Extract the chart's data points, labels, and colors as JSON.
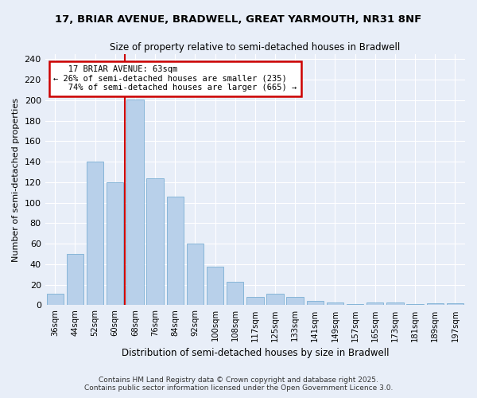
{
  "title_line1": "17, BRIAR AVENUE, BRADWELL, GREAT YARMOUTH, NR31 8NF",
  "title_line2": "Size of property relative to semi-detached houses in Bradwell",
  "xlabel": "Distribution of semi-detached houses by size in Bradwell",
  "ylabel": "Number of semi-detached properties",
  "bar_labels": [
    "36sqm",
    "44sqm",
    "52sqm",
    "60sqm",
    "68sqm",
    "76sqm",
    "84sqm",
    "92sqm",
    "100sqm",
    "108sqm",
    "117sqm",
    "125sqm",
    "133sqm",
    "141sqm",
    "149sqm",
    "157sqm",
    "165sqm",
    "173sqm",
    "181sqm",
    "189sqm",
    "197sqm"
  ],
  "bar_values": [
    11,
    50,
    140,
    120,
    201,
    124,
    106,
    60,
    38,
    23,
    8,
    11,
    8,
    4,
    3,
    1,
    3,
    3,
    1,
    2,
    2
  ],
  "bar_color": "#b8d0ea",
  "bar_edge_color": "#7bafd4",
  "property_label": "17 BRIAR AVENUE: 63sqm",
  "pct_smaller": 26,
  "pct_smaller_count": 235,
  "pct_larger": 74,
  "pct_larger_count": 665,
  "annotation_box_color": "#ffffff",
  "annotation_box_edge_color": "#cc0000",
  "red_line_color": "#cc0000",
  "ylim": [
    0,
    245
  ],
  "yticks": [
    0,
    20,
    40,
    60,
    80,
    100,
    120,
    140,
    160,
    180,
    200,
    220,
    240
  ],
  "background_color": "#e8eef8",
  "grid_color": "#ffffff",
  "footer_line1": "Contains HM Land Registry data © Crown copyright and database right 2025.",
  "footer_line2": "Contains public sector information licensed under the Open Government Licence 3.0."
}
